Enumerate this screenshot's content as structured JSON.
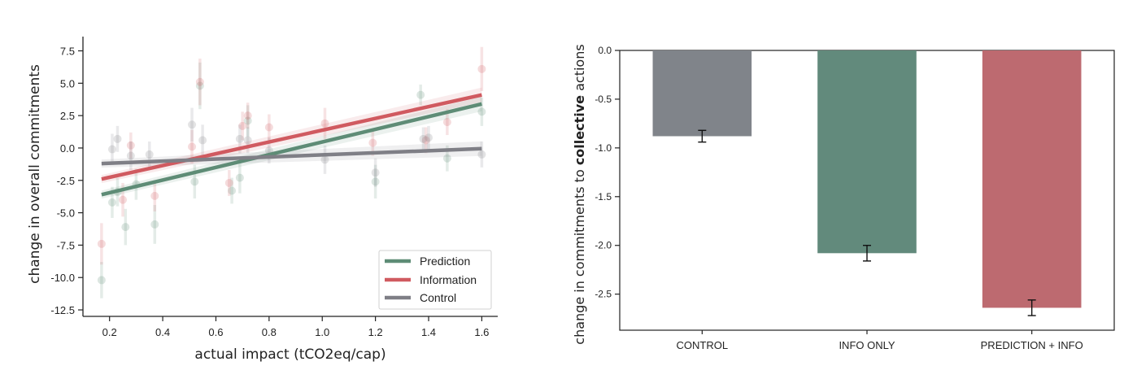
{
  "chart_data": [
    {
      "type": "scatter",
      "xlabel": "actual impact (tCO2eq/cap)",
      "ylabel": "change in overall commitments",
      "xlim": [
        0.1,
        1.66
      ],
      "ylim": [
        -13.0,
        8.6
      ],
      "xticks": [
        0.2,
        0.4,
        0.6,
        0.8,
        1.0,
        1.2,
        1.4,
        1.6
      ],
      "xtick_labels": [
        "0.2",
        "0.4",
        "0.6",
        "0.8",
        "1.0",
        "1.2",
        "1.4",
        "1.6"
      ],
      "yticks": [
        7.5,
        5.0,
        2.5,
        0.0,
        -2.5,
        -5.0,
        -7.5,
        -10.0,
        -12.5
      ],
      "ytick_labels": [
        "7.5",
        "5.0",
        "2.5",
        "0.0",
        "-2.5",
        "-5.0",
        "-7.5",
        "-10.0",
        "-12.5"
      ],
      "legend": {
        "position": "lower-right",
        "entries": [
          "Prediction",
          "Information",
          "Control"
        ]
      },
      "series": [
        {
          "name": "Prediction",
          "color": "#5e8c76",
          "fit": {
            "x": [
              0.17,
              1.6
            ],
            "y": [
              -3.6,
              3.4
            ]
          },
          "points": [
            {
              "x": 0.17,
              "y": -10.2,
              "err": 1.4
            },
            {
              "x": 0.21,
              "y": -4.2,
              "err": 1.2
            },
            {
              "x": 0.23,
              "y": -3.4,
              "err": 1.1
            },
            {
              "x": 0.26,
              "y": -6.1,
              "err": 1.4
            },
            {
              "x": 0.3,
              "y": -2.8,
              "err": 1.2
            },
            {
              "x": 0.37,
              "y": -5.9,
              "err": 1.5
            },
            {
              "x": 0.52,
              "y": -2.6,
              "err": 1.3
            },
            {
              "x": 0.54,
              "y": 4.8,
              "err": 1.8
            },
            {
              "x": 0.66,
              "y": -3.3,
              "err": 1.0
            },
            {
              "x": 0.69,
              "y": -2.3,
              "err": 1.2
            },
            {
              "x": 0.72,
              "y": 2.1,
              "err": 1.2
            },
            {
              "x": 1.2,
              "y": -2.6,
              "err": 1.3
            },
            {
              "x": 1.37,
              "y": 4.1,
              "err": 0.8
            },
            {
              "x": 1.47,
              "y": -0.8,
              "err": 1.0
            },
            {
              "x": 1.6,
              "y": 2.8,
              "err": 1.1
            }
          ]
        },
        {
          "name": "Information",
          "color": "#d05a60",
          "fit": {
            "x": [
              0.17,
              1.6
            ],
            "y": [
              -2.4,
              4.1
            ]
          },
          "points": [
            {
              "x": 0.17,
              "y": -7.4,
              "err": 1.6
            },
            {
              "x": 0.25,
              "y": -4.0,
              "err": 1.3
            },
            {
              "x": 0.28,
              "y": 0.2,
              "err": 1.0
            },
            {
              "x": 0.37,
              "y": -3.7,
              "err": 1.2
            },
            {
              "x": 0.51,
              "y": 0.1,
              "err": 1.3
            },
            {
              "x": 0.54,
              "y": 5.1,
              "err": 1.8
            },
            {
              "x": 0.65,
              "y": -2.7,
              "err": 1.0
            },
            {
              "x": 0.7,
              "y": 1.7,
              "err": 1.1
            },
            {
              "x": 0.72,
              "y": 2.5,
              "err": 1.0
            },
            {
              "x": 0.8,
              "y": 1.6,
              "err": 1.0
            },
            {
              "x": 1.01,
              "y": 1.9,
              "err": 1.2
            },
            {
              "x": 1.19,
              "y": 0.4,
              "err": 1.0
            },
            {
              "x": 1.39,
              "y": 0.6,
              "err": 1.0
            },
            {
              "x": 1.47,
              "y": 2.0,
              "err": 1.0
            },
            {
              "x": 1.6,
              "y": 6.1,
              "err": 1.7
            }
          ]
        },
        {
          "name": "Control",
          "color": "#7f7f86",
          "fit": {
            "x": [
              0.17,
              1.6
            ],
            "y": [
              -1.2,
              -0.05
            ]
          },
          "points": [
            {
              "x": 0.21,
              "y": -0.1,
              "err": 1.2
            },
            {
              "x": 0.23,
              "y": 0.7,
              "err": 1.0
            },
            {
              "x": 0.28,
              "y": -0.6,
              "err": 1.1
            },
            {
              "x": 0.35,
              "y": -0.5,
              "err": 1.0
            },
            {
              "x": 0.51,
              "y": 1.8,
              "err": 1.3
            },
            {
              "x": 0.55,
              "y": 0.6,
              "err": 1.2
            },
            {
              "x": 0.69,
              "y": 0.7,
              "err": 1.1
            },
            {
              "x": 0.72,
              "y": 0.6,
              "err": 1.0
            },
            {
              "x": 0.8,
              "y": -0.2,
              "err": 1.0
            },
            {
              "x": 1.01,
              "y": -0.9,
              "err": 1.1
            },
            {
              "x": 1.2,
              "y": -1.9,
              "err": 1.1
            },
            {
              "x": 1.38,
              "y": 0.7,
              "err": 0.9
            },
            {
              "x": 1.4,
              "y": 0.8,
              "err": 0.9
            },
            {
              "x": 1.6,
              "y": -0.5,
              "err": 1.0
            }
          ]
        }
      ]
    },
    {
      "type": "bar",
      "ylabel_parts": [
        "change in commitments to ",
        "collective",
        " actions"
      ],
      "categories": [
        "CONTROL",
        "INFO ONLY",
        "PREDICTION + INFO"
      ],
      "values": [
        -0.88,
        -2.08,
        -2.64
      ],
      "errors": [
        0.06,
        0.08,
        0.08
      ],
      "colors": [
        "#80848a",
        "#628a7c",
        "#bd6a70"
      ],
      "ylim": [
        -2.87,
        0.0
      ],
      "yticks": [
        0.0,
        -0.5,
        -1.0,
        -1.5,
        -2.0,
        -2.5
      ],
      "ytick_labels": [
        "0.0",
        "-0.5",
        "-1.0",
        "-1.5",
        "-2.0",
        "-2.5"
      ]
    }
  ]
}
